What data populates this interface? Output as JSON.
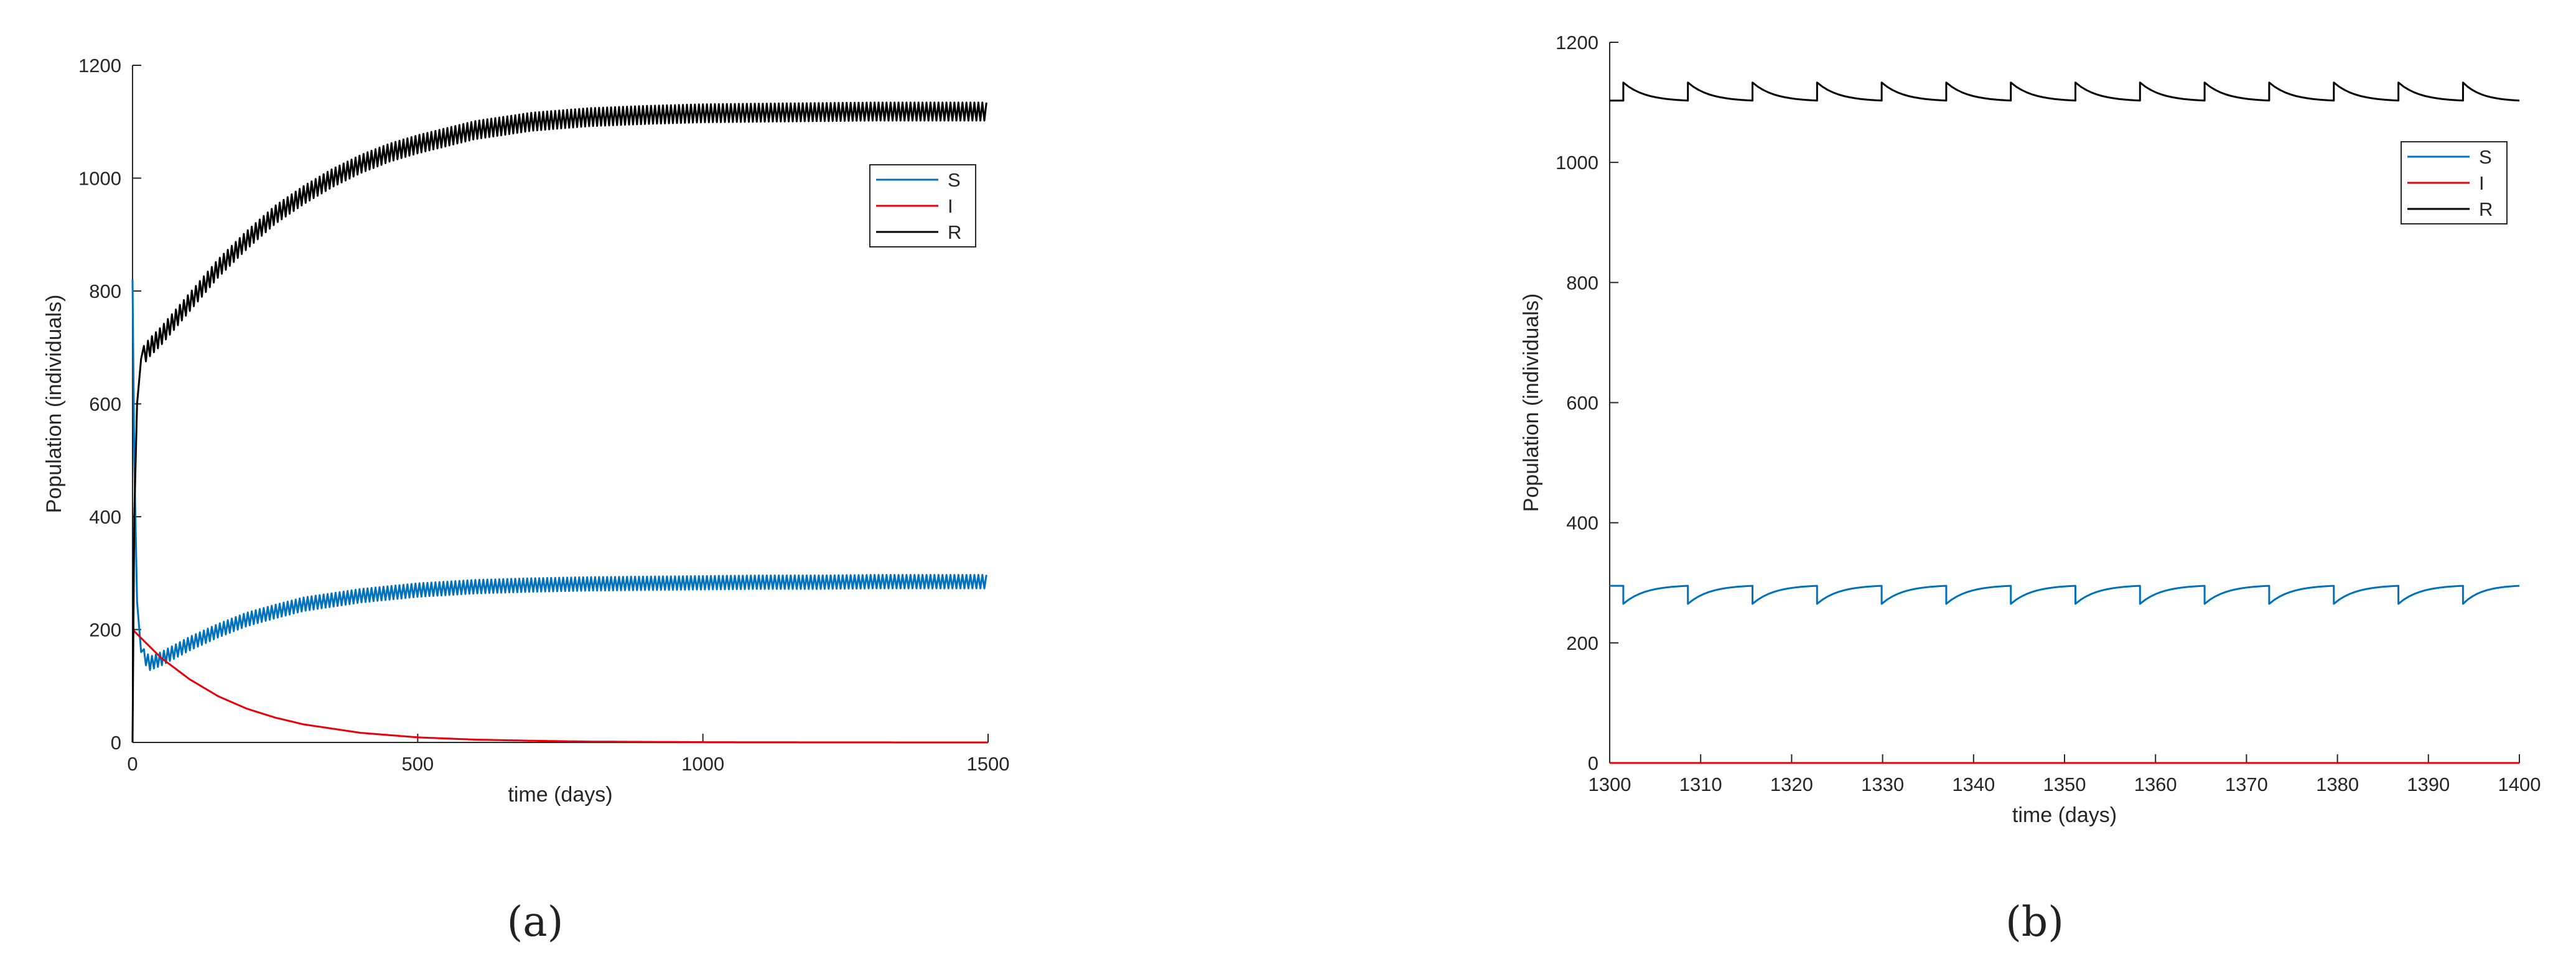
{
  "panels": [
    {
      "caption": "(a)",
      "chart_data": {
        "type": "line",
        "title": "",
        "xlabel": "time (days)",
        "ylabel": "Population (individuals)",
        "xlim": [
          0,
          1500
        ],
        "ylim": [
          0,
          1200
        ],
        "xticks": [
          0,
          500,
          1000,
          1500
        ],
        "yticks": [
          0,
          200,
          400,
          600,
          800,
          1000,
          1200
        ],
        "grid": false,
        "legend_position": "top-right",
        "series": [
          {
            "name": "S",
            "color": "#0072bd",
            "oscillation": {
              "period_days": 7,
              "amplitude": 12,
              "from_x": 20
            },
            "x": [
              0,
              3,
              8,
              15,
              30,
              50,
              100,
              150,
              200,
              250,
              300,
              400,
              500,
              600,
              700,
              800,
              900,
              1000,
              1100,
              1200,
              1300,
              1400,
              1500
            ],
            "y": [
              820,
              500,
              250,
              160,
              140,
              148,
              175,
              198,
              218,
              232,
              245,
              260,
              270,
              276,
              279,
              281,
              282,
              283,
              284,
              284,
              285,
              285,
              285
            ]
          },
          {
            "name": "I",
            "color": "#e8000b",
            "x": [
              0,
              50,
              100,
              150,
              200,
              250,
              300,
              400,
              500,
              600,
              700,
              800,
              1000,
              1200,
              1500
            ],
            "y": [
              200,
              150,
              112,
              82,
              60,
              44,
              32,
              17,
              9,
              5,
              3,
              1.5,
              0.5,
              0.1,
              0
            ]
          },
          {
            "name": "R",
            "color": "#000000",
            "oscillation": {
              "period_days": 7,
              "amplitude": 16,
              "from_x": 20
            },
            "x": [
              0,
              3,
              8,
              15,
              30,
              50,
              100,
              150,
              200,
              250,
              300,
              350,
              400,
              450,
              500,
              600,
              700,
              800,
              900,
              1000,
              1100,
              1200,
              1300,
              1400,
              1500
            ],
            "y": [
              0,
              400,
              600,
              680,
              700,
              720,
              780,
              840,
              890,
              935,
              970,
              1000,
              1025,
              1045,
              1060,
              1085,
              1100,
              1108,
              1112,
              1115,
              1116,
              1117,
              1118,
              1118,
              1118
            ]
          }
        ]
      }
    },
    {
      "caption": "(b)",
      "chart_data": {
        "type": "line",
        "title": "",
        "xlabel": "time (days)",
        "ylabel": "Population (individuals)",
        "xlim": [
          1300,
          1400
        ],
        "ylim": [
          0,
          1200
        ],
        "xticks": [
          1300,
          1310,
          1320,
          1330,
          1340,
          1350,
          1360,
          1370,
          1380,
          1390,
          1400
        ],
        "yticks": [
          0,
          200,
          400,
          600,
          800,
          1000,
          1200
        ],
        "grid": false,
        "legend_position": "top-right",
        "series": [
          {
            "name": "S",
            "color": "#0072bd",
            "pulse": {
              "period_days": 7.1,
              "first_pulse": 1301.5,
              "low": 265,
              "high": 295,
              "drop_to": "low"
            }
          },
          {
            "name": "I",
            "color": "#e8000b",
            "x": [
              1300,
              1400
            ],
            "y": [
              0,
              0
            ]
          },
          {
            "name": "R",
            "color": "#000000",
            "pulse": {
              "period_days": 7.1,
              "first_pulse": 1301.5,
              "low": 1103,
              "high": 1133,
              "drop_to": "high"
            }
          }
        ]
      }
    }
  ]
}
